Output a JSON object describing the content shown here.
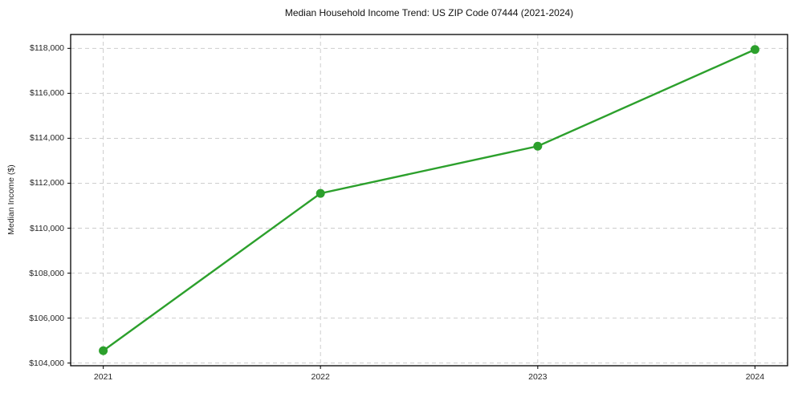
{
  "page": {
    "background_color": "#ffffff",
    "frame_color": "#000000",
    "tick_text_color": "#262626"
  },
  "chart_data": {
    "type": "line",
    "title": "Median Household Income Trend: US ZIP Code 07444 (2021-2024)",
    "xlabel": "",
    "ylabel": "Median Income ($)",
    "x": [
      2021,
      2022,
      2023,
      2024
    ],
    "values": [
      104550,
      111550,
      113650,
      117950
    ],
    "xlim": [
      2020.85,
      2024.15
    ],
    "ylim": [
      103880,
      118620
    ],
    "grid": true,
    "grid_style": "dashed",
    "legend": false,
    "line_color": "#2ca02c",
    "marker_color": "#2ca02c",
    "grid_color": "#cdcdcd",
    "xticks": [
      {
        "value": 2021,
        "label": "2021"
      },
      {
        "value": 2022,
        "label": "2022"
      },
      {
        "value": 2023,
        "label": "2023"
      },
      {
        "value": 2024,
        "label": "2024"
      }
    ],
    "yticks": [
      {
        "value": 104000,
        "label": "$104,000"
      },
      {
        "value": 106000,
        "label": "$106,000"
      },
      {
        "value": 108000,
        "label": "$108,000"
      },
      {
        "value": 110000,
        "label": "$110,000"
      },
      {
        "value": 112000,
        "label": "$112,000"
      },
      {
        "value": 114000,
        "label": "$114,000"
      },
      {
        "value": 116000,
        "label": "$116,000"
      },
      {
        "value": 118000,
        "label": "$118,000"
      }
    ]
  }
}
